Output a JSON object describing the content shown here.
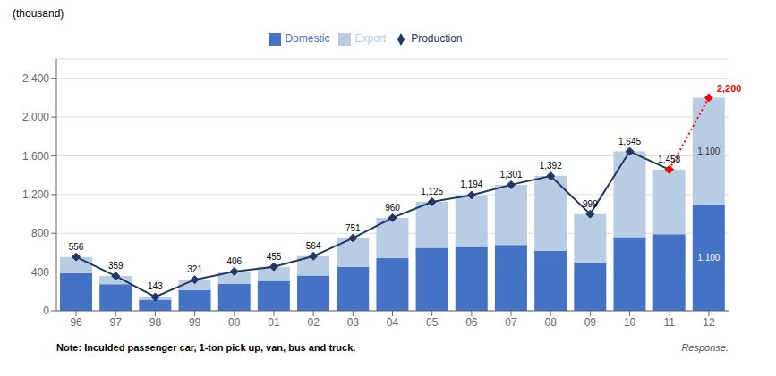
{
  "chart_data": {
    "type": "bar",
    "ylabel": "(thousand)",
    "annotations": [
      "Note: Inculded passenger car, 1-ton pick up, van, bus and truck.",
      "Response."
    ],
    "categories": [
      "96",
      "97",
      "98",
      "99",
      "00",
      "01",
      "02",
      "03",
      "04",
      "05",
      "06",
      "07",
      "08",
      "09",
      "10",
      "11",
      "12"
    ],
    "series": [
      {
        "name": "Domestic",
        "type": "bar",
        "color": "#4472C4",
        "values": [
          390,
          275,
          115,
          215,
          280,
          310,
          365,
          455,
          545,
          650,
          660,
          680,
          620,
          495,
          760,
          790,
          1100
        ],
        "value_labels": [
          null,
          null,
          null,
          null,
          null,
          null,
          null,
          null,
          null,
          null,
          null,
          null,
          null,
          null,
          null,
          null,
          "1,100"
        ]
      },
      {
        "name": "Export",
        "type": "bar",
        "color": "#B8CCE4",
        "values": [
          166,
          84,
          28,
          106,
          126,
          145,
          199,
          296,
          415,
          475,
          534,
          621,
          772,
          504,
          885,
          668,
          1100
        ],
        "value_labels": [
          null,
          null,
          null,
          null,
          null,
          null,
          null,
          null,
          null,
          null,
          null,
          null,
          null,
          null,
          null,
          null,
          "1,100"
        ]
      },
      {
        "name": "Production",
        "type": "line",
        "color": "#1F3864",
        "marker": "diamond",
        "line_style": "solid",
        "values": [
          556,
          359,
          143,
          321,
          406,
          455,
          564,
          751,
          960,
          1125,
          1194,
          1301,
          1392,
          999,
          1645,
          1458,
          null
        ],
        "value_labels": [
          "556",
          "359",
          "143",
          "321",
          "406",
          "455",
          "564",
          "751",
          "960",
          "1,125",
          "1,194",
          "1,301",
          "1,392",
          "999",
          "1,645",
          "1,458",
          null
        ]
      },
      {
        "type": "line",
        "color": "#FF0000",
        "marker": "diamond",
        "line_style": "dotted",
        "values": [
          null,
          null,
          null,
          null,
          null,
          null,
          null,
          null,
          null,
          null,
          null,
          null,
          null,
          null,
          null,
          1458,
          2200
        ],
        "value_labels": [
          null,
          null,
          null,
          null,
          null,
          null,
          null,
          null,
          null,
          null,
          null,
          null,
          null,
          null,
          null,
          null,
          "2,200"
        ]
      }
    ],
    "stacked": true,
    "data_labels": true,
    "ylim": [
      0,
      2600
    ],
    "yticks": [
      0,
      400,
      800,
      {
        "value": 1200,
        "label": "1,200"
      },
      {
        "value": 1600,
        "label": "1,600"
      },
      {
        "value": 2000,
        "label": "2,000"
      },
      {
        "value": 2400,
        "label": "2,400"
      }
    ],
    "grid": true,
    "legend": "top"
  }
}
